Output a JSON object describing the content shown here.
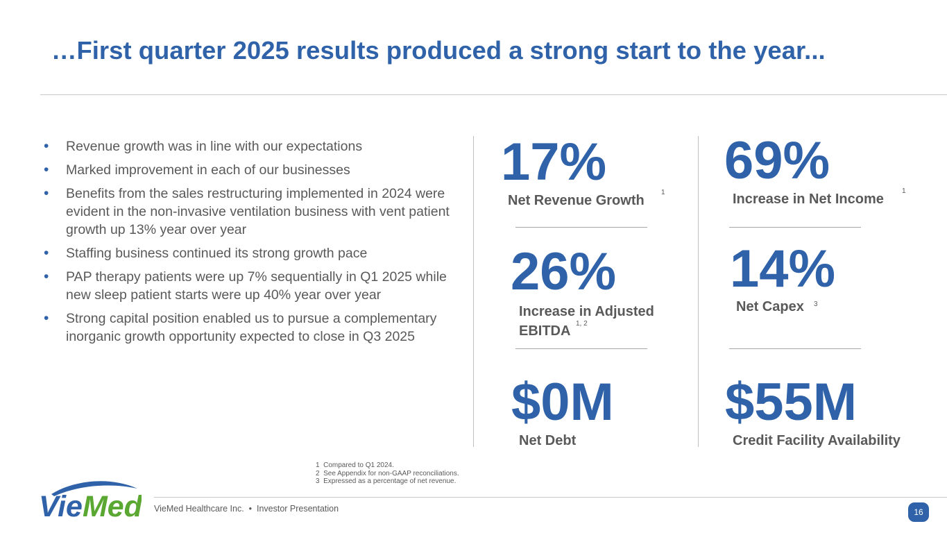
{
  "slide": {
    "title": "…First quarter 2025 results produced a strong start to the year...",
    "bullets": [
      "Revenue growth was in line with our expectations",
      "Marked improvement in each of our businesses",
      "Benefits from the sales restructuring implemented in 2024 were evident in the non-invasive ventilation business with vent patient growth up 13% year over year",
      "Staffing business continued its strong growth pace",
      "PAP therapy patients were up 7% sequentially in Q1 2025 while new sleep patient starts were up 40% year over year",
      "Strong capital position enabled us to pursue a complementary inorganic growth opportunity expected to close in Q3 2025"
    ]
  },
  "stats": {
    "net_revenue_growth": {
      "value": "17%",
      "label": "Net Revenue Growth",
      "note": "1"
    },
    "net_income": {
      "value": "69%",
      "label": "Increase in Net Income",
      "note": "1"
    },
    "adjusted_ebitda": {
      "value": "26%",
      "label_line1": "Increase in Adjusted",
      "label_line2": "EBITDA",
      "note": "1, 2"
    },
    "net_capex": {
      "value": "14%",
      "label": "Net Capex",
      "note": "3"
    },
    "net_debt": {
      "value": "$0M",
      "label": "Net Debt"
    },
    "credit_facility": {
      "value": "$55M",
      "label": "Credit Facility Availability"
    }
  },
  "footnotes": [
    "1  Compared to Q1 2024.",
    "2  See Appendix for non-GAAP reconciliations.",
    "3  Expressed as a percentage of net revenue."
  ],
  "footer": {
    "text": "VieMed Healthcare Inc.  •  Investor Presentation",
    "page_number": "16",
    "logo_text": "VieMed"
  },
  "colors": {
    "brand_blue": "#2f62a8",
    "logo_green": "#5aa832",
    "body_text": "#595959"
  }
}
